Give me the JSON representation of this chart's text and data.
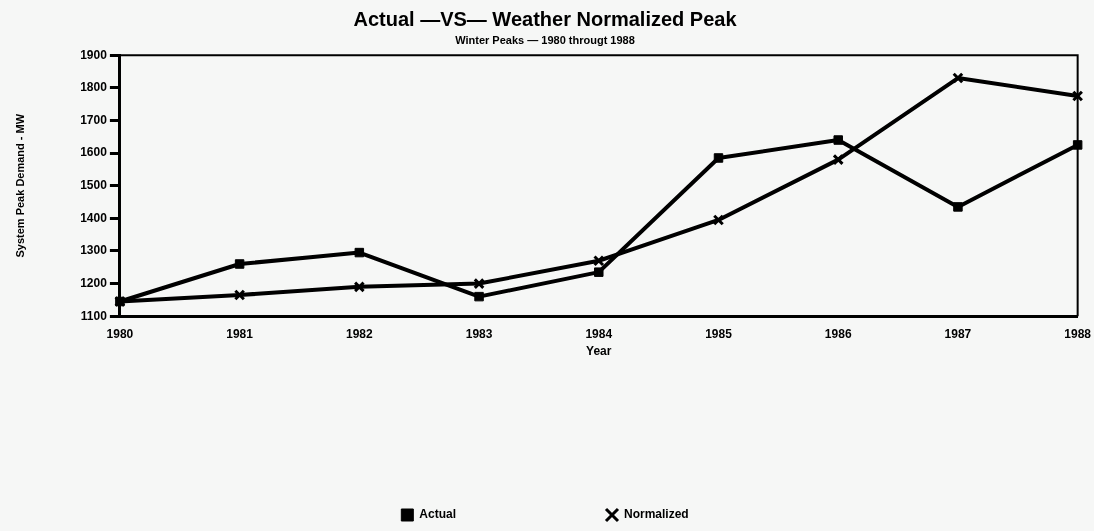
{
  "chart_data": {
    "type": "line",
    "title": "Actual —VS— Weather Normalized Peak",
    "subtitle": "Winter Peaks — 1980 througt 1988",
    "xlabel": "Year",
    "ylabel": "System Peak Demand - MW",
    "categories": [
      "1980",
      "1981",
      "1982",
      "1983",
      "1984",
      "1985",
      "1986",
      "1987",
      "1988"
    ],
    "series": [
      {
        "name": "Actual",
        "color": "#000000",
        "marker": "square",
        "values": [
          1145,
          1260,
          1295,
          1160,
          1235,
          1585,
          1640,
          1435,
          1625
        ]
      },
      {
        "name": "Normalized",
        "color": "#000000",
        "marker": "cross",
        "values": [
          1145,
          1165,
          1190,
          1200,
          1270,
          1395,
          1580,
          1830,
          1775
        ]
      }
    ],
    "ylim": [
      1100,
      1900
    ],
    "yticks": [
      1100,
      1200,
      1300,
      1400,
      1500,
      1600,
      1700,
      1800,
      1900
    ],
    "grid": false,
    "legend": "bottom",
    "line_style": "solid"
  }
}
